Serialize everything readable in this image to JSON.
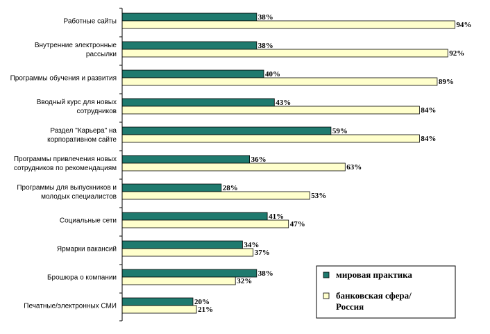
{
  "chart_data": {
    "type": "bar",
    "orientation": "horizontal",
    "categories": [
      [
        "Работные сайты"
      ],
      [
        "Внутренние электронные",
        "рассылки"
      ],
      [
        "Программы обучения и развития"
      ],
      [
        "Вводный курс для новых",
        "сотрудников"
      ],
      [
        "Раздел \"Карьера\" на",
        "корпоративном сайте"
      ],
      [
        "Программы привлечения новых",
        "сотрудников по рекомендациям"
      ],
      [
        "Программы для выпускников и",
        "молодых специалистов"
      ],
      [
        "Социальные сети"
      ],
      [
        "Ярмарки вакансий"
      ],
      [
        "Брошюра о компании"
      ],
      [
        "Печатные/электронных СМИ"
      ]
    ],
    "series": [
      {
        "name": "мировая практика",
        "values": [
          38,
          38,
          40,
          43,
          59,
          36,
          28,
          41,
          34,
          38,
          20
        ],
        "color": "#1f7a6e"
      },
      {
        "name": "банковская сфера/ Россия",
        "values": [
          94,
          92,
          89,
          84,
          84,
          63,
          53,
          47,
          37,
          32,
          21
        ],
        "color": "#ffffcc"
      }
    ],
    "legend": {
      "position": "bottom-right",
      "items": [
        [
          "мировая практика"
        ],
        [
          "банковская сфера/",
          "Россия"
        ]
      ]
    },
    "value_suffix": "%",
    "xlim": [
      0,
      100
    ],
    "grid": false
  }
}
